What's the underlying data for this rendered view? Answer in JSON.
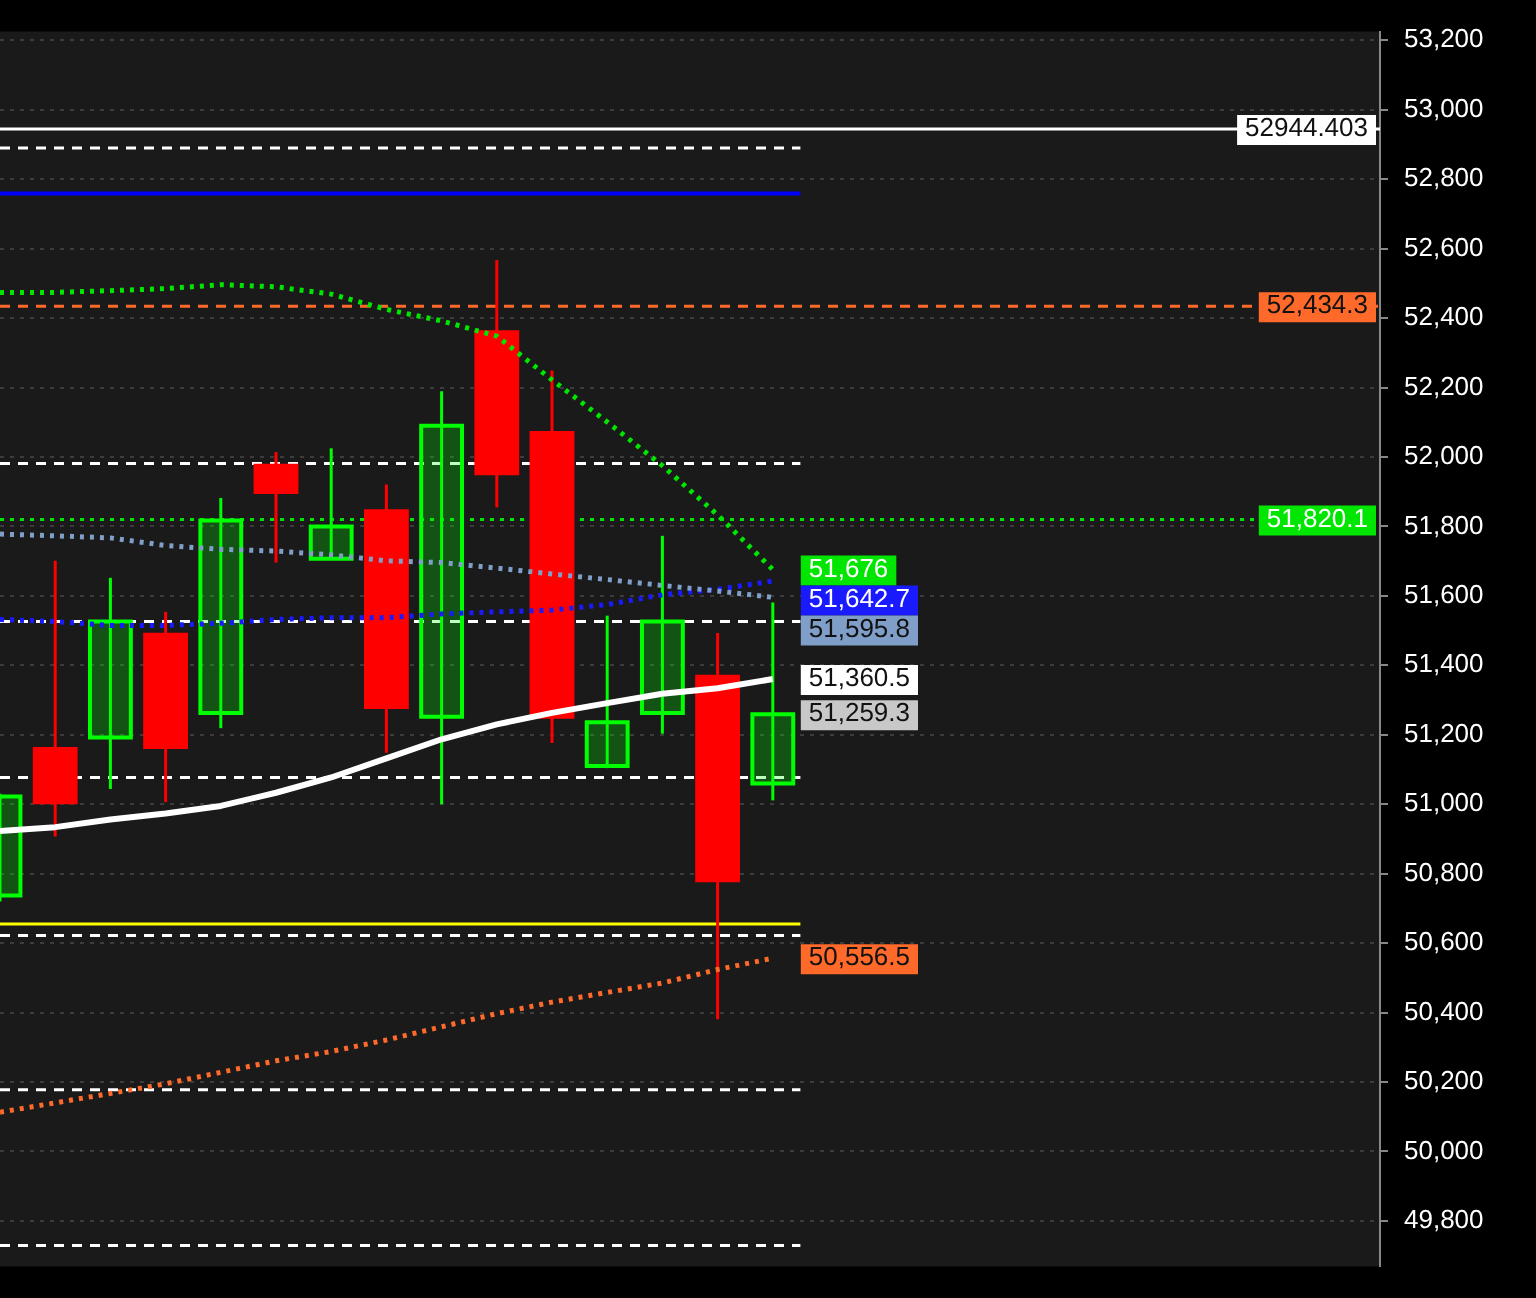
{
  "chart_data": {
    "type": "candlestick",
    "categories": [
      null,
      null,
      null,
      null,
      null,
      null,
      null,
      null,
      null,
      null,
      null,
      null,
      null,
      null,
      null,
      null,
      null,
      null,
      null,
      null,
      null,
      null,
      null,
      null,
      null,
      null
    ],
    "ohlc": [
      [
        50737,
        51030,
        50720,
        51022
      ],
      [
        51159,
        51701,
        50907,
        51006
      ],
      [
        51192,
        51652,
        51044,
        51526
      ],
      [
        51488,
        51554,
        51006,
        51165
      ],
      [
        51263,
        51882,
        51219,
        51817
      ],
      [
        51975,
        52014,
        51696,
        51899
      ],
      [
        51707,
        52025,
        51707,
        51800
      ],
      [
        51844,
        51921,
        51148,
        51280
      ],
      [
        51252,
        52189,
        51000,
        52090
      ],
      [
        52359,
        52567,
        51855,
        51953
      ],
      [
        52069,
        52249,
        51176,
        51252
      ],
      [
        51110,
        51543,
        51104,
        51236
      ],
      [
        51263,
        51773,
        51203,
        51526
      ],
      [
        51367,
        51493,
        50381,
        50781
      ],
      [
        51060,
        51581,
        51011,
        51259.3
      ],
      null,
      null,
      null,
      null,
      null,
      null,
      null,
      null,
      null,
      null,
      null
    ],
    "colors": [
      "#00ff00",
      "#ff0000",
      "#00ff00",
      "#ff0000",
      "#00ff00",
      "#ff0000",
      "#00ff00",
      "#ff0000",
      "#00ff00",
      "#ff0000",
      "#ff0000",
      "#00ff00",
      "#00ff00",
      "#ff0000",
      "#00ff00",
      null,
      null,
      null,
      null,
      null,
      null,
      null,
      null,
      null,
      null,
      null
    ],
    "value_labels": [
      null,
      null,
      null,
      null,
      null,
      null,
      null,
      null,
      null,
      null,
      null,
      null,
      null,
      null,
      "51,259.3",
      null,
      null,
      null,
      null,
      null,
      null,
      null,
      null,
      null,
      null,
      null
    ],
    "series": [
      {
        "type": "line",
        "color": "#ffffff",
        "line_style": "solid",
        "values": [
          50923,
          50934,
          50956,
          50973,
          50995,
          51033,
          51077,
          51132,
          51187,
          51230,
          51263,
          51291,
          51318,
          51334,
          51360.5,
          null,
          null,
          null,
          null,
          null,
          null,
          null,
          null,
          null,
          null,
          null
        ],
        "value_labels": [
          null,
          null,
          null,
          null,
          null,
          null,
          null,
          null,
          null,
          null,
          null,
          null,
          null,
          null,
          "51,360.5",
          null,
          null,
          null,
          null,
          null,
          null,
          null,
          null,
          null,
          null,
          null
        ]
      },
      {
        "type": "line",
        "color": "#00e600",
        "line_style": "dotted",
        "values": [
          52474,
          52474,
          52479,
          52485,
          52496,
          52490,
          52469,
          52425,
          52392,
          52348,
          52222,
          52101,
          51975,
          51833,
          51676,
          null,
          null,
          null,
          null,
          null,
          null,
          null,
          null,
          null,
          null,
          null
        ],
        "value_labels": [
          null,
          null,
          null,
          null,
          null,
          null,
          null,
          null,
          null,
          null,
          null,
          null,
          null,
          null,
          "51,676",
          null,
          null,
          null,
          null,
          null,
          null,
          null,
          null,
          null,
          null,
          null
        ]
      },
      {
        "type": "line",
        "color": "#7f9fc8",
        "line_style": "dotted",
        "values": [
          51778,
          51773,
          51767,
          51745,
          51734,
          51729,
          51718,
          51701,
          51696,
          51680,
          51663,
          51647,
          51630,
          51614,
          51595.8,
          null,
          null,
          null,
          null,
          null,
          null,
          null,
          null,
          null,
          null,
          null
        ],
        "value_labels": [
          null,
          null,
          null,
          null,
          null,
          null,
          null,
          null,
          null,
          null,
          null,
          null,
          null,
          null,
          "51,595.8",
          null,
          null,
          null,
          null,
          null,
          null,
          null,
          null,
          null,
          null,
          null
        ]
      },
      {
        "type": "line",
        "color": "#1a1aff",
        "line_style": "dotted",
        "values": [
          51532,
          51526,
          51515,
          51515,
          51521,
          51532,
          51537,
          51537,
          51548,
          51554,
          51559,
          51575,
          51603,
          51619,
          51642.7,
          null,
          null,
          null,
          null,
          null,
          null,
          null,
          null,
          null,
          null,
          null
        ],
        "value_labels": [
          null,
          null,
          null,
          null,
          null,
          null,
          null,
          null,
          null,
          null,
          null,
          null,
          null,
          null,
          "51,642.7",
          null,
          null,
          null,
          null,
          null,
          null,
          null,
          null,
          null,
          null,
          null
        ]
      },
      {
        "type": "line",
        "color": "#ff6a2a",
        "line_style": "dotted",
        "values": [
          50113,
          50140,
          50167,
          50195,
          50228,
          50261,
          50288,
          50321,
          50359,
          50397,
          50430,
          50458,
          50485,
          50524,
          50556.5,
          null,
          null,
          null,
          null,
          null,
          null,
          null,
          null,
          null,
          null,
          null
        ],
        "value_labels": [
          null,
          null,
          null,
          null,
          null,
          null,
          null,
          null,
          null,
          null,
          null,
          null,
          null,
          null,
          "50,556.5",
          null,
          null,
          null,
          null,
          null,
          null,
          null,
          null,
          null,
          null,
          null
        ]
      }
    ],
    "ref_lines": [
      {
        "axis": "y",
        "value": 52944.403,
        "label": "52944.403",
        "color": "#ffffff",
        "line_style": "solid"
      },
      {
        "axis": "y",
        "value": 52890,
        "label": null,
        "color": "#ffffff",
        "line_style": "dashed"
      },
      {
        "axis": "y",
        "value": 52759,
        "label": null,
        "color": "#0000ff",
        "line_style": "solid"
      },
      {
        "axis": "y",
        "value": 52434.3,
        "label": "52,434.3",
        "color": "#ff6a2a",
        "line_style": "dashed"
      },
      {
        "axis": "y",
        "value": 51981,
        "label": null,
        "color": "#ffffff",
        "line_style": "dashed"
      },
      {
        "axis": "y",
        "value": 51820.1,
        "label": "51,820.1",
        "color": "#00e600",
        "line_style": "dotted"
      },
      {
        "axis": "y",
        "value": 51526,
        "label": null,
        "color": "#ffffff",
        "line_style": "dashed"
      },
      {
        "axis": "y",
        "value": 51077,
        "label": null,
        "color": "#ffffff",
        "line_style": "dashed"
      },
      {
        "axis": "y",
        "value": 50655,
        "label": null,
        "color": "#ffff00",
        "line_style": "solid"
      },
      {
        "axis": "y",
        "value": 50622,
        "label": null,
        "color": "#ffffff",
        "line_style": "dashed"
      },
      {
        "axis": "y",
        "value": 50178,
        "label": null,
        "color": "#ffffff",
        "line_style": "dashed"
      },
      {
        "axis": "y",
        "value": 49729,
        "label": null,
        "color": "#ffffff",
        "line_style": "dashed"
      }
    ],
    "ylim": [
      49669,
      53225
    ],
    "yticks": [
      {
        "value": 49800,
        "label": "49,800"
      },
      {
        "value": 50000,
        "label": "50,000"
      },
      {
        "value": 50200,
        "label": "50,200"
      },
      {
        "value": 50400,
        "label": "50,400"
      },
      {
        "value": 50600,
        "label": "50,600"
      },
      {
        "value": 50800,
        "label": "50,800"
      },
      {
        "value": 51000,
        "label": "51,000"
      },
      {
        "value": 51200,
        "label": "51,200"
      },
      {
        "value": 51400,
        "label": "51,400"
      },
      {
        "value": 51600,
        "label": "51,600"
      },
      {
        "value": 51800,
        "label": "51,800"
      },
      {
        "value": 52000,
        "label": "52,000"
      },
      {
        "value": 52200,
        "label": "52,200"
      },
      {
        "value": 52400,
        "label": "52,400"
      },
      {
        "value": 52600,
        "label": "52,600"
      },
      {
        "value": 52800,
        "label": "52,800"
      },
      {
        "value": 53000,
        "label": "53,000"
      },
      {
        "value": 53200,
        "label": "53,200"
      }
    ],
    "grid": "y",
    "tick_labels": "y",
    "marker": "none"
  }
}
